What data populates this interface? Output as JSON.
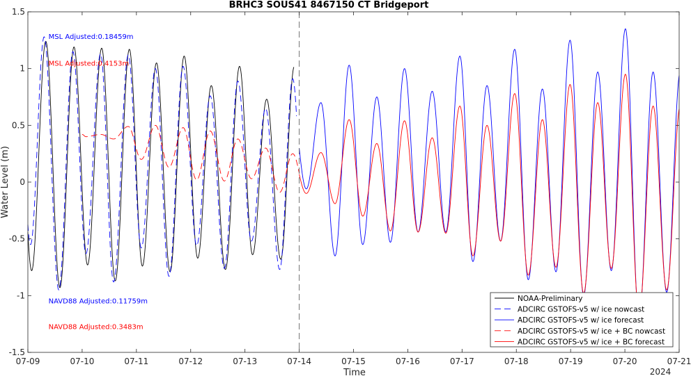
{
  "chart_data": {
    "type": "line",
    "title": "BRHC3 SOUS41 8467150 CT Bridgeport",
    "xlabel": "Time",
    "ylabel": "Water Level (m)",
    "ylim": [
      -1.5,
      1.5
    ],
    "xlim": [
      0,
      12
    ],
    "x_unit": "days from 07-09 00:00",
    "x_ticks": [
      {
        "v": 0,
        "label": "07-09"
      },
      {
        "v": 1,
        "label": "07-10"
      },
      {
        "v": 2,
        "label": "07-11"
      },
      {
        "v": 3,
        "label": "07-12"
      },
      {
        "v": 4,
        "label": "07-13"
      },
      {
        "v": 5,
        "label": "07-14"
      },
      {
        "v": 6,
        "label": "07-15"
      },
      {
        "v": 7,
        "label": "07-16"
      },
      {
        "v": 8,
        "label": "07-17"
      },
      {
        "v": 9,
        "label": "07-18"
      },
      {
        "v": 10,
        "label": "07-19"
      },
      {
        "v": 11,
        "label": "07-20"
      },
      {
        "v": 12,
        "label": "07-21"
      }
    ],
    "year_label": "2024",
    "y_ticks": [
      {
        "v": 1.5,
        "label": "1.5"
      },
      {
        "v": 1,
        "label": "1"
      },
      {
        "v": 0.5,
        "label": "0.5"
      },
      {
        "v": 0,
        "label": "0"
      },
      {
        "v": -0.5,
        "label": "-0.5"
      },
      {
        "v": -1,
        "label": "-1"
      },
      {
        "v": -1.5,
        "label": "-1.5"
      }
    ],
    "nowcast_forecast_divider_x": 5,
    "annotations": [
      {
        "text": "MSL Adjusted:0.18459m",
        "color": "#0000ff",
        "x": 0.38,
        "y": 1.285
      },
      {
        "text": "MSL Adjusted:0.4153m",
        "color": "#ff0000",
        "x": 0.38,
        "y": 1.05
      },
      {
        "text": "NAVD88 Adjusted:0.11759m",
        "color": "#0000ff",
        "x": 0.38,
        "y": -1.045
      },
      {
        "text": "NAVD88 Adjusted:0.3483m",
        "color": "#ff0000",
        "x": 0.38,
        "y": -1.27
      }
    ],
    "legend_position": "bottom-right",
    "series": [
      {
        "name": "NOAA-Preliminary",
        "color": "#000000",
        "dash": "solid",
        "x_range": [
          0,
          4.9
        ],
        "highs": [
          [
            0.33,
            1.24
          ],
          [
            0.85,
            1.19
          ],
          [
            1.36,
            1.18
          ],
          [
            1.87,
            1.17
          ],
          [
            2.37,
            1.05
          ],
          [
            2.88,
            1.11
          ],
          [
            3.38,
            0.85
          ],
          [
            3.9,
            1.02
          ],
          [
            4.4,
            0.73
          ],
          [
            4.91,
            1.02
          ]
        ],
        "lows": [
          [
            0.07,
            -0.78
          ],
          [
            0.59,
            -0.93
          ],
          [
            1.1,
            -0.73
          ],
          [
            1.61,
            -0.87
          ],
          [
            2.11,
            -0.74
          ],
          [
            2.62,
            -0.79
          ],
          [
            3.13,
            -0.67
          ],
          [
            3.64,
            -0.77
          ],
          [
            4.14,
            -0.64
          ],
          [
            4.66,
            -0.68
          ]
        ]
      },
      {
        "name": "ADCIRC GSTOFS-v5 w/ ice nowcast",
        "color": "#0000ff",
        "dash": "long-dash",
        "x_range": [
          0,
          4.95
        ],
        "highs": [
          [
            0.3,
            1.28
          ],
          [
            0.83,
            1.15
          ],
          [
            1.34,
            1.13
          ],
          [
            1.85,
            1.12
          ],
          [
            2.35,
            1.0
          ],
          [
            2.86,
            1.02
          ],
          [
            3.36,
            0.76
          ],
          [
            3.87,
            0.89
          ],
          [
            4.38,
            0.65
          ],
          [
            4.88,
            0.91
          ]
        ],
        "lows": [
          [
            0.05,
            -0.55
          ],
          [
            0.57,
            -0.95
          ],
          [
            1.07,
            -0.63
          ],
          [
            1.58,
            -0.88
          ],
          [
            2.09,
            -0.58
          ],
          [
            2.6,
            -0.83
          ],
          [
            3.11,
            -0.56
          ],
          [
            3.62,
            -0.76
          ],
          [
            4.12,
            -0.52
          ],
          [
            4.64,
            -0.77
          ]
        ]
      },
      {
        "name": "ADCIRC GSTOFS-v5 w/ ice forecast",
        "color": "#0000ff",
        "dash": "solid",
        "x_range": [
          5,
          12
        ],
        "highs": [
          [
            5.4,
            0.7
          ],
          [
            5.92,
            1.03
          ],
          [
            6.43,
            0.75
          ],
          [
            6.94,
            1.0
          ],
          [
            7.45,
            0.8
          ],
          [
            7.96,
            1.11
          ],
          [
            8.46,
            0.85
          ],
          [
            8.97,
            1.17
          ],
          [
            9.48,
            0.82
          ],
          [
            9.99,
            1.25
          ],
          [
            10.5,
            0.97
          ],
          [
            11.01,
            1.35
          ],
          [
            11.52,
            0.97
          ]
        ],
        "lows": [
          [
            5.13,
            -0.06
          ],
          [
            5.66,
            -0.65
          ],
          [
            6.17,
            -0.55
          ],
          [
            6.68,
            -0.53
          ],
          [
            7.19,
            -0.44
          ],
          [
            7.7,
            -0.44
          ],
          [
            8.2,
            -0.7
          ],
          [
            8.71,
            -0.52
          ],
          [
            9.22,
            -0.86
          ],
          [
            9.73,
            -0.79
          ],
          [
            10.24,
            -1.0
          ],
          [
            10.75,
            -0.78
          ],
          [
            11.26,
            -1.2
          ],
          [
            11.77,
            -0.97
          ]
        ]
      },
      {
        "name": "ADCIRC GSTOFS-v5 w/ ice + BC nowcast",
        "color": "#ff0000",
        "dash": "long-dash",
        "x_range": [
          1,
          5
        ],
        "highs": [
          [
            1.0,
            0.42
          ],
          [
            1.34,
            0.42
          ],
          [
            1.85,
            0.49
          ],
          [
            2.35,
            0.5
          ],
          [
            2.86,
            0.48
          ],
          [
            3.36,
            0.45
          ],
          [
            3.87,
            0.38
          ],
          [
            4.38,
            0.3
          ],
          [
            4.88,
            0.25
          ]
        ],
        "lows": [
          [
            1.07,
            0.4
          ],
          [
            1.58,
            0.38
          ],
          [
            2.09,
            0.2
          ],
          [
            2.6,
            0.13
          ],
          [
            3.11,
            0.02
          ],
          [
            3.62,
            0.01
          ],
          [
            4.12,
            0.03
          ],
          [
            4.64,
            -0.09
          ]
        ]
      },
      {
        "name": "ADCIRC GSTOFS-v5 w/ ice + BC forecast",
        "color": "#ff0000",
        "dash": "solid",
        "x_range": [
          5,
          12
        ],
        "highs": [
          [
            5.4,
            0.26
          ],
          [
            5.92,
            0.55
          ],
          [
            6.43,
            0.34
          ],
          [
            6.94,
            0.54
          ],
          [
            7.45,
            0.39
          ],
          [
            7.96,
            0.67
          ],
          [
            8.46,
            0.5
          ],
          [
            8.97,
            0.78
          ],
          [
            9.48,
            0.55
          ],
          [
            9.99,
            0.86
          ],
          [
            10.5,
            0.7
          ],
          [
            11.01,
            0.95
          ],
          [
            11.52,
            0.67
          ]
        ],
        "lows": [
          [
            5.13,
            -0.1
          ],
          [
            5.66,
            -0.19
          ],
          [
            6.17,
            -0.3
          ],
          [
            6.68,
            -0.43
          ],
          [
            7.19,
            -0.44
          ],
          [
            7.7,
            -0.45
          ],
          [
            8.2,
            -0.65
          ],
          [
            8.71,
            -0.52
          ],
          [
            9.22,
            -0.82
          ],
          [
            9.73,
            -0.75
          ],
          [
            10.24,
            -0.98
          ],
          [
            10.75,
            -0.76
          ],
          [
            11.26,
            -1.16
          ],
          [
            11.77,
            -0.95
          ]
        ]
      }
    ]
  }
}
